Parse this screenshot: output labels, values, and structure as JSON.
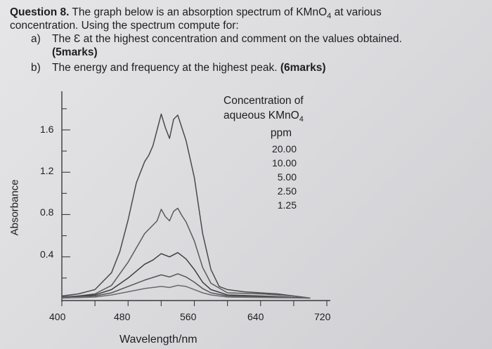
{
  "question": {
    "number": "Question 8.",
    "intro_line1": " The graph below is an absorption spectrum of KMnO",
    "intro_sub": "4",
    "intro_line1_end": " at  various",
    "intro_line2": "concentration. Using the spectrum compute for:",
    "part_a_label": "a)",
    "part_a_text": "The Ɛ at the highest concentration and comment on the values obtained.",
    "part_a_marks": "(5marks)",
    "part_b_label": "b)",
    "part_b_text": "The energy and frequency at the highest peak.",
    "part_b_marks": " (6marks)"
  },
  "legend": {
    "title_line1": "Concentration of",
    "title_line2": "aqueous KMnO",
    "title_sub": "4",
    "unit": "ppm",
    "entries": [
      "20.00",
      "10.00",
      "5.00",
      "2.50",
      "1.25"
    ]
  },
  "chart_data": {
    "type": "line",
    "title": "",
    "xlabel": "Wavelength/nm",
    "ylabel": "Absorbance",
    "xlim": [
      400,
      720
    ],
    "ylim": [
      0,
      1.85
    ],
    "x_ticks": [
      "400",
      "480",
      "560",
      "640",
      "720"
    ],
    "y_ticks": [
      "1.6",
      "1.2",
      "0.8",
      "0.4"
    ],
    "series": [
      {
        "name": "20.00",
        "x": [
          400,
          420,
          440,
          460,
          470,
          480,
          490,
          500,
          505,
          510,
          515,
          520,
          525,
          530,
          535,
          540,
          545,
          550,
          560,
          570,
          580,
          590,
          600,
          620,
          640,
          660,
          680,
          700
        ],
        "values": [
          0.03,
          0.05,
          0.09,
          0.25,
          0.45,
          0.75,
          1.1,
          1.3,
          1.36,
          1.45,
          1.6,
          1.75,
          1.62,
          1.52,
          1.7,
          1.74,
          1.62,
          1.5,
          1.15,
          0.62,
          0.28,
          0.12,
          0.09,
          0.07,
          0.06,
          0.05,
          0.03,
          0.01
        ]
      },
      {
        "name": "10.00",
        "x": [
          400,
          420,
          440,
          460,
          480,
          500,
          510,
          515,
          520,
          525,
          530,
          535,
          540,
          545,
          550,
          560,
          570,
          580,
          600,
          640,
          680,
          700
        ],
        "values": [
          0.02,
          0.03,
          0.05,
          0.13,
          0.35,
          0.62,
          0.7,
          0.74,
          0.85,
          0.78,
          0.74,
          0.83,
          0.86,
          0.79,
          0.73,
          0.55,
          0.3,
          0.15,
          0.06,
          0.05,
          0.03,
          0.01
        ]
      },
      {
        "name": "5.00",
        "x": [
          400,
          440,
          460,
          480,
          500,
          510,
          520,
          530,
          540,
          545,
          550,
          560,
          570,
          580,
          600,
          640,
          700
        ],
        "values": [
          0.02,
          0.04,
          0.09,
          0.2,
          0.33,
          0.37,
          0.43,
          0.4,
          0.44,
          0.41,
          0.38,
          0.28,
          0.16,
          0.09,
          0.04,
          0.03,
          0.01
        ]
      },
      {
        "name": "2.50",
        "x": [
          400,
          440,
          460,
          480,
          500,
          520,
          530,
          540,
          550,
          560,
          570,
          580,
          600,
          700
        ],
        "values": [
          0.02,
          0.03,
          0.06,
          0.12,
          0.18,
          0.23,
          0.21,
          0.24,
          0.21,
          0.16,
          0.1,
          0.06,
          0.03,
          0.01
        ]
      },
      {
        "name": "1.25",
        "x": [
          400,
          440,
          460,
          480,
          500,
          520,
          530,
          540,
          550,
          560,
          570,
          580,
          600,
          700
        ],
        "values": [
          0.01,
          0.02,
          0.04,
          0.07,
          0.1,
          0.12,
          0.11,
          0.13,
          0.12,
          0.09,
          0.06,
          0.04,
          0.02,
          0.01
        ]
      }
    ]
  }
}
